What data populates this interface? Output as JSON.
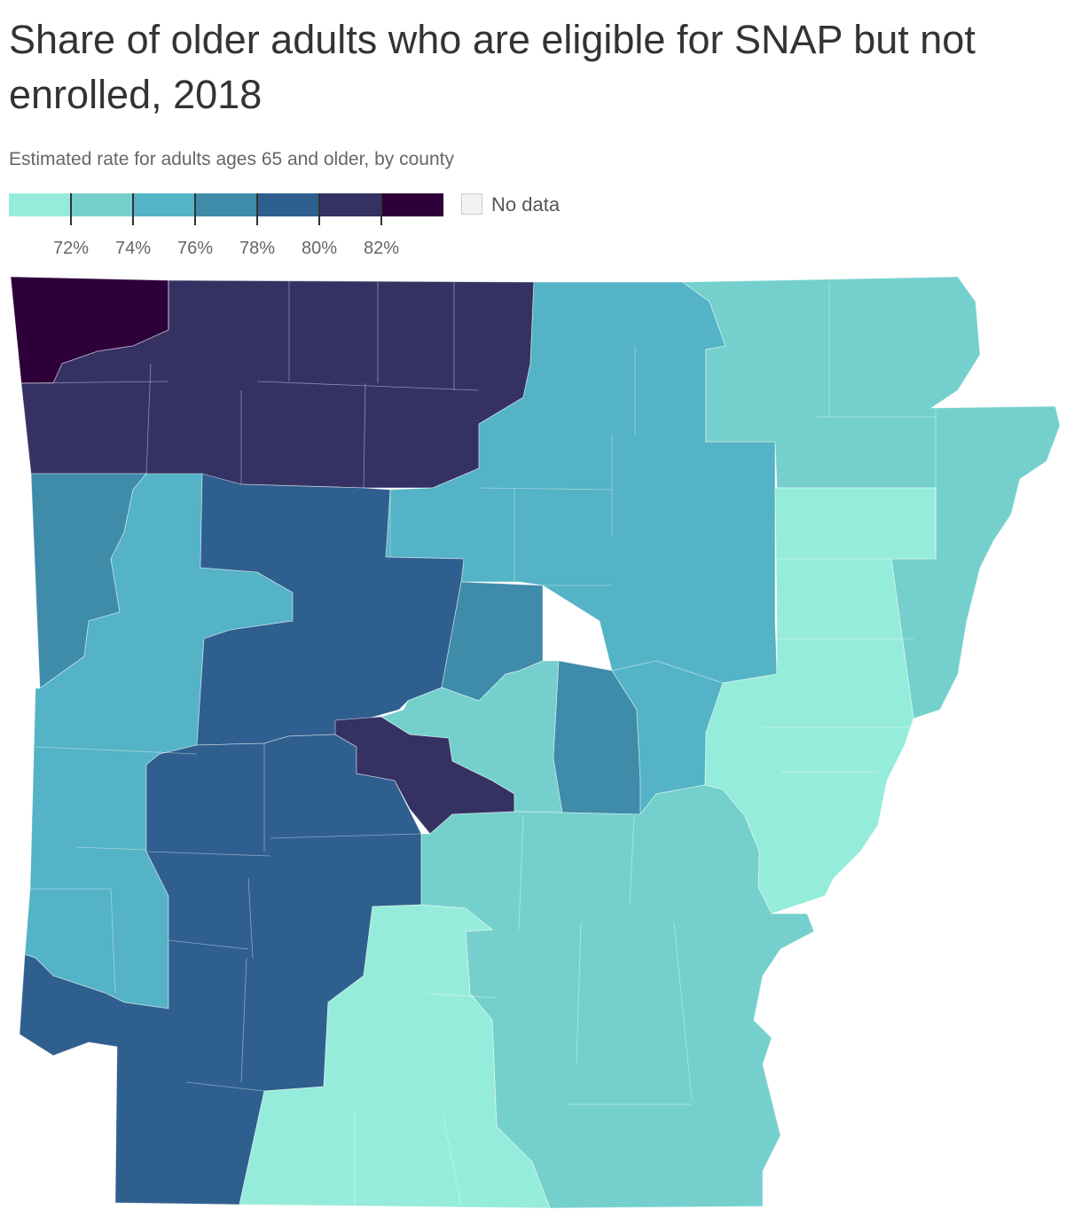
{
  "title": "Share of older adults who are eligible for SNAP but not enrolled, 2018",
  "subtitle": "Estimated rate for adults ages 65 and older, by county",
  "legend": {
    "colors": [
      "#96ecda",
      "#75d0cd",
      "#54b3c6",
      "#3f8baa",
      "#2f5f8f",
      "#353263",
      "#2d0039"
    ],
    "ticks": [
      "72%",
      "74%",
      "76%",
      "78%",
      "80%",
      "82%"
    ],
    "nodata_label": "No data",
    "nodata_color": "#f2f2f2"
  },
  "map": {
    "state": "Arkansas",
    "unit": "county"
  }
}
